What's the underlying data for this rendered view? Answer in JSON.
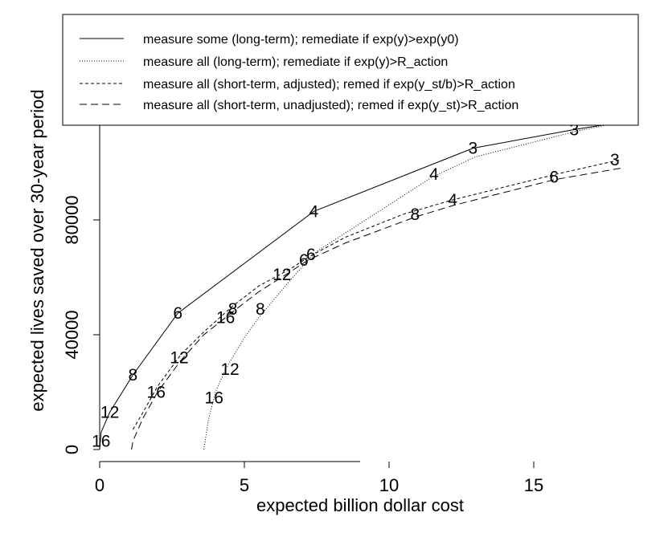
{
  "chart_data": {
    "type": "line",
    "title": "",
    "xlabel": "expected billion dollar cost",
    "ylabel": "expected lives saved over 30-year period",
    "xlim": [
      0,
      18
    ],
    "ylim": [
      0,
      113000
    ],
    "xticks": [
      0,
      5,
      10,
      15
    ],
    "yticks": [
      0,
      40000,
      80000
    ],
    "x_tick_labels": [
      "0",
      "5",
      "10",
      "15"
    ],
    "y_tick_labels": [
      "0",
      "40000",
      "80000"
    ],
    "grid": false,
    "legend_position": "top",
    "series": [
      {
        "name": "measure some (long-term); remediate if exp(y)>exp(y0)",
        "dash": "solid",
        "x": [
          0.0,
          0.05,
          0.35,
          1.15,
          2.7,
          7.4,
          12.9,
          16.4,
          18.0
        ],
        "y": [
          0,
          6000,
          13000,
          26000,
          47500,
          83000,
          105000,
          111500,
          114000
        ],
        "labels": [
          {
            "text": "16",
            "x": 0.05,
            "y": 3000
          },
          {
            "text": "12",
            "x": 0.35,
            "y": 13000
          },
          {
            "text": "8",
            "x": 1.15,
            "y": 26000
          },
          {
            "text": "6",
            "x": 2.7,
            "y": 47500
          },
          {
            "text": "4",
            "x": 7.4,
            "y": 83000
          },
          {
            "text": "3",
            "x": 12.9,
            "y": 105000
          },
          {
            "text": "3",
            "x": 16.4,
            "y": 111500
          }
        ]
      },
      {
        "name": "measure all (long-term); remediate if exp(y)>R_action",
        "dash": "dotted",
        "x": [
          3.6,
          3.75,
          4.0,
          4.35,
          5.0,
          5.5,
          6.5,
          7.2,
          7.5,
          9.5,
          11.5,
          13.0,
          16.5,
          18.0
        ],
        "y": [
          0,
          10000,
          20000,
          28000,
          39000,
          46000,
          58000,
          66000,
          69000,
          82000,
          95000,
          102000,
          111000,
          114000
        ],
        "labels": [
          {
            "text": "16",
            "x": 3.95,
            "y": 18000
          },
          {
            "text": "12",
            "x": 4.5,
            "y": 28000
          },
          {
            "text": "8",
            "x": 5.55,
            "y": 49000
          },
          {
            "text": "6",
            "x": 7.3,
            "y": 68000
          },
          {
            "text": "4",
            "x": 11.55,
            "y": 96000
          }
        ]
      },
      {
        "name": "measure all (short-term, adjusted); remed if exp(y_st/b)>R_action",
        "dash": "short-dash",
        "x": [
          1.15,
          1.5,
          2.0,
          2.8,
          3.6,
          4.6,
          5.5,
          6.6,
          7.2,
          8.5,
          10.5,
          12.2,
          15.8,
          18.0
        ],
        "y": [
          7000,
          13000,
          22000,
          33000,
          41000,
          50000,
          57000,
          63000,
          67000,
          74000,
          82000,
          87000,
          96000,
          101000
        ],
        "labels": [
          {
            "text": "16",
            "x": 4.35,
            "y": 46000
          },
          {
            "text": "12",
            "x": 6.3,
            "y": 61000
          },
          {
            "text": "6",
            "x": 7.05,
            "y": 66000
          },
          {
            "text": "4",
            "x": 12.2,
            "y": 87000
          },
          {
            "text": "3",
            "x": 17.8,
            "y": 101000
          }
        ]
      },
      {
        "name": "measure all (short-term, unadjusted); remed if exp(y_st)>R_action",
        "dash": "long-dash",
        "x": [
          1.1,
          1.15,
          1.5,
          2.0,
          2.8,
          3.6,
          4.6,
          5.5,
          6.6,
          7.2,
          8.5,
          10.9,
          12.2,
          15.7,
          18.0
        ],
        "y": [
          0,
          3000,
          11000,
          20000,
          31000,
          40000,
          48000,
          55000,
          62000,
          66000,
          72000,
          81000,
          85000,
          94000,
          98000
        ],
        "labels": [
          {
            "text": "16",
            "x": 1.95,
            "y": 20000
          },
          {
            "text": "12",
            "x": 2.75,
            "y": 32000
          },
          {
            "text": "8",
            "x": 4.6,
            "y": 49000
          },
          {
            "text": "8",
            "x": 10.9,
            "y": 82000
          },
          {
            "text": "6",
            "x": 15.7,
            "y": 95000
          }
        ]
      }
    ]
  }
}
